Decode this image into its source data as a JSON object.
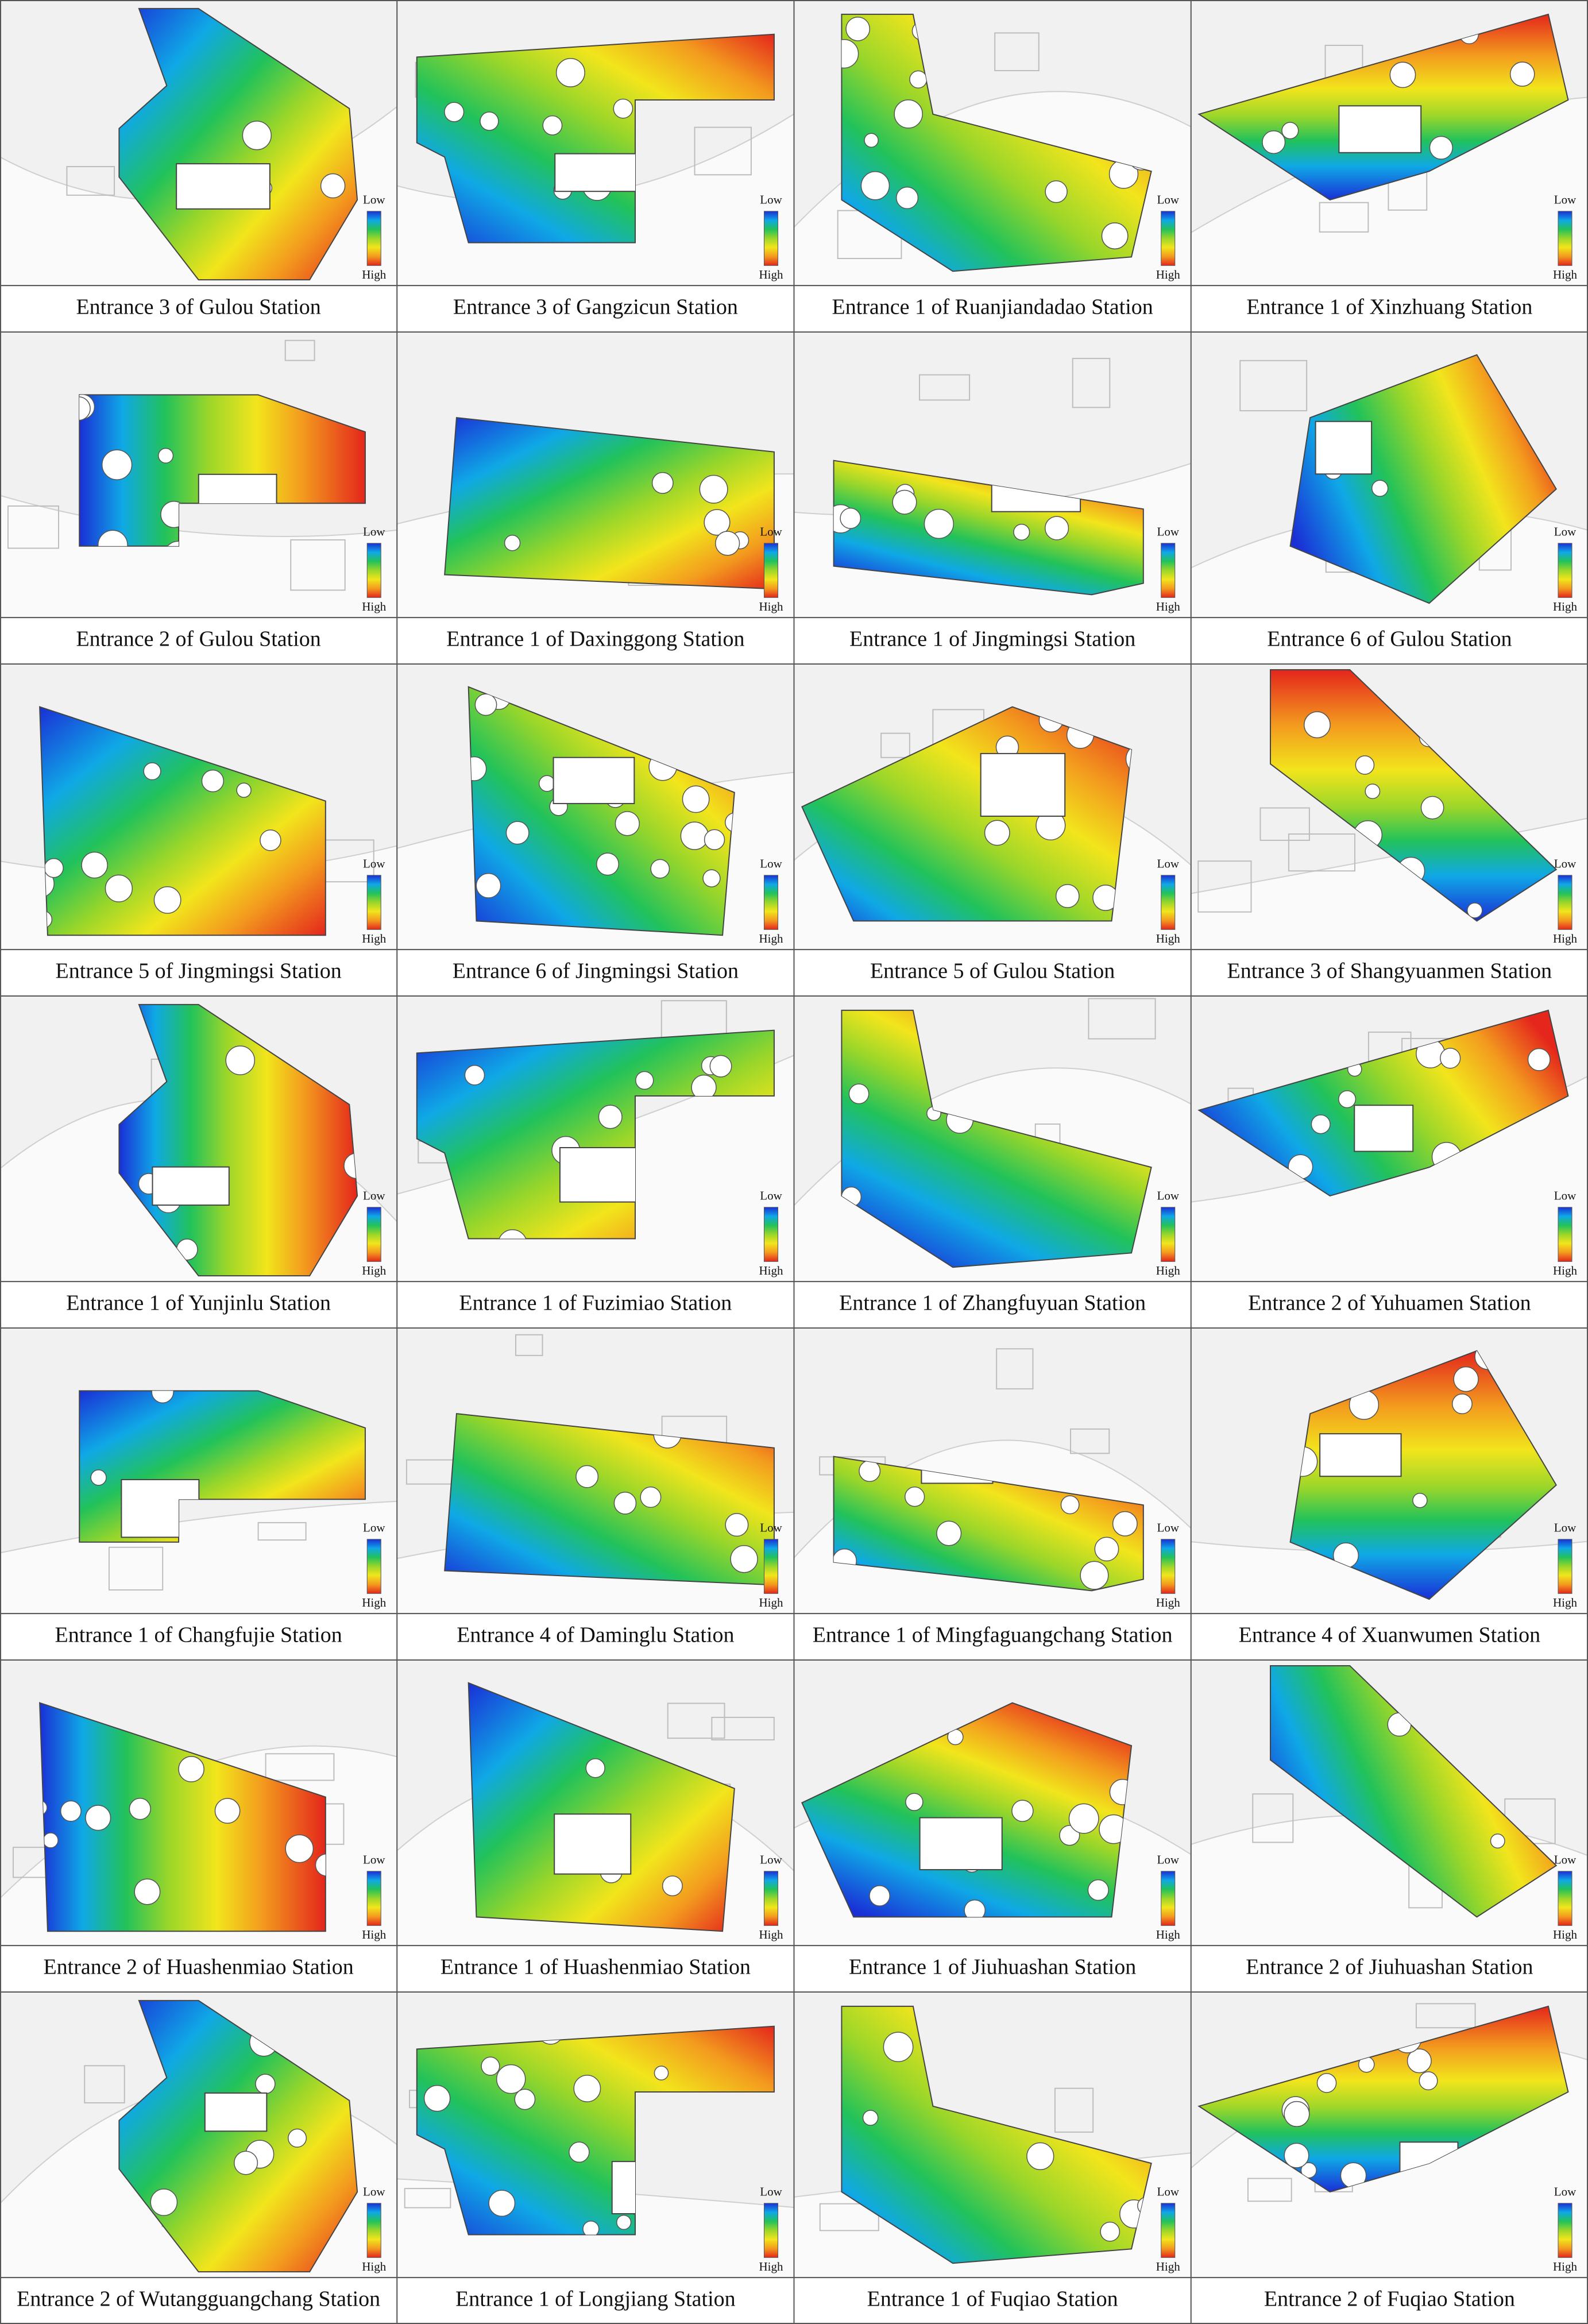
{
  "legend": {
    "low": "Low",
    "high": "High"
  },
  "panels": [
    {
      "caption": "Entrance 3 of Gulou Station"
    },
    {
      "caption": "Entrance 3 of Gangzicun Station"
    },
    {
      "caption": "Entrance 1 of Ruanjiandadao Station"
    },
    {
      "caption": "Entrance 1 of Xinzhuang Station"
    },
    {
      "caption": "Entrance 2 of Gulou Station"
    },
    {
      "caption": "Entrance 1 of Daxinggong Station"
    },
    {
      "caption": "Entrance 1 of Jingmingsi Station"
    },
    {
      "caption": "Entrance 6 of Gulou Station"
    },
    {
      "caption": "Entrance 5 of Jingmingsi Station"
    },
    {
      "caption": "Entrance 6 of Jingmingsi Station"
    },
    {
      "caption": "Entrance 5 of Gulou Station"
    },
    {
      "caption": "Entrance 3 of Shangyuanmen Station"
    },
    {
      "caption": "Entrance 1 of Yunjinlu Station"
    },
    {
      "caption": "Entrance 1 of Fuzimiao Station"
    },
    {
      "caption": "Entrance 1 of Zhangfuyuan Station"
    },
    {
      "caption": "Entrance 2 of Yuhuamen Station"
    },
    {
      "caption": "Entrance 1 of Changfujie Station"
    },
    {
      "caption": "Entrance 4 of Daminglu Station"
    },
    {
      "caption": "Entrance 1 of Mingfaguangchang Station"
    },
    {
      "caption": "Entrance 4 of Xuanwumen Station"
    },
    {
      "caption": "Entrance 2 of Huashenmiao Station"
    },
    {
      "caption": "Entrance 1 of Huashenmiao Station"
    },
    {
      "caption": "Entrance 1 of Jiuhuashan Station"
    },
    {
      "caption": "Entrance 2 of Jiuhuashan Station"
    },
    {
      "caption": "Entrance 2 of Wutangguangchang Station"
    },
    {
      "caption": "Entrance 1 of Longjiang Station"
    },
    {
      "caption": "Entrance 1 of Fuqiao Station"
    },
    {
      "caption": "Entrance 2 of Fuqiao Station"
    }
  ]
}
